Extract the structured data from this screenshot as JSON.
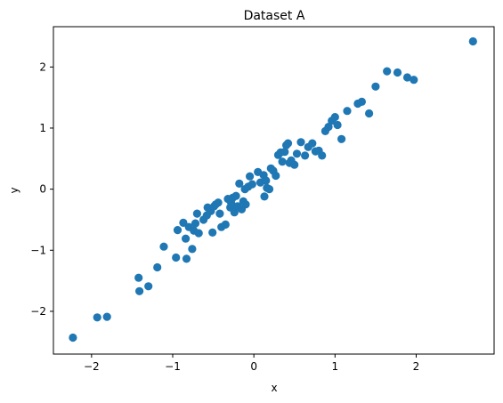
{
  "chart_data": {
    "type": "scatter",
    "title": "Dataset A",
    "xlabel": "x",
    "ylabel": "y",
    "xlim": [
      -2.47,
      2.96
    ],
    "ylim": [
      -2.7,
      2.66
    ],
    "xticks": [
      -2,
      -1,
      0,
      1,
      2
    ],
    "xtick_labels": [
      "−2",
      "−1",
      "0",
      "1",
      "2"
    ],
    "yticks": [
      -2,
      -1,
      0,
      1,
      2
    ],
    "ytick_labels": [
      "−2",
      "−1",
      "0",
      "1",
      "2"
    ],
    "grid": false,
    "legend": false,
    "marker_color": "#1f77b4",
    "series": [
      {
        "x": [
          -2.23,
          -1.93,
          -1.81,
          -1.42,
          -1.41,
          -1.3,
          -1.19,
          -1.11,
          -0.96,
          -0.94,
          -0.87,
          -0.84,
          -0.83,
          -0.8,
          -0.76,
          -0.74,
          -0.72,
          -0.7,
          -0.68,
          -0.62,
          -0.58,
          -0.57,
          -0.53,
          -0.51,
          -0.49,
          -0.47,
          -0.44,
          -0.42,
          -0.4,
          -0.35,
          -0.32,
          -0.29,
          -0.28,
          -0.26,
          -0.24,
          -0.22,
          -0.2,
          -0.18,
          -0.15,
          -0.13,
          -0.11,
          -0.1,
          -0.07,
          -0.05,
          -0.02,
          0.05,
          0.08,
          0.12,
          0.13,
          0.15,
          0.16,
          0.19,
          0.21,
          0.24,
          0.27,
          0.3,
          0.33,
          0.35,
          0.38,
          0.4,
          0.42,
          0.44,
          0.46,
          0.5,
          0.53,
          0.58,
          0.63,
          0.67,
          0.72,
          0.76,
          0.8,
          0.84,
          0.88,
          0.92,
          0.96,
          1.0,
          1.03,
          1.08,
          1.15,
          1.28,
          1.33,
          1.42,
          1.5,
          1.64,
          1.77,
          1.89,
          1.97,
          2.7
        ],
        "y": [
          -2.43,
          -2.1,
          -2.09,
          -1.45,
          -1.67,
          -1.59,
          -1.28,
          -0.94,
          -1.12,
          -0.67,
          -0.55,
          -0.81,
          -1.14,
          -0.62,
          -0.98,
          -0.68,
          -0.56,
          -0.4,
          -0.72,
          -0.5,
          -0.43,
          -0.3,
          -0.36,
          -0.71,
          -0.28,
          -0.25,
          -0.22,
          -0.4,
          -0.62,
          -0.58,
          -0.16,
          -0.3,
          -0.22,
          -0.14,
          -0.38,
          -0.11,
          -0.28,
          0.09,
          -0.33,
          -0.2,
          0.0,
          -0.25,
          0.04,
          0.21,
          0.08,
          0.28,
          0.11,
          0.23,
          -0.12,
          0.14,
          0.02,
          0.0,
          0.34,
          0.3,
          0.22,
          0.56,
          0.6,
          0.45,
          0.61,
          0.72,
          0.75,
          0.43,
          0.47,
          0.4,
          0.58,
          0.77,
          0.55,
          0.69,
          0.75,
          0.62,
          0.63,
          0.55,
          0.95,
          1.02,
          1.12,
          1.18,
          1.05,
          0.82,
          1.28,
          1.4,
          1.43,
          1.24,
          1.68,
          1.93,
          1.91,
          1.83,
          1.79,
          2.42
        ]
      }
    ]
  }
}
